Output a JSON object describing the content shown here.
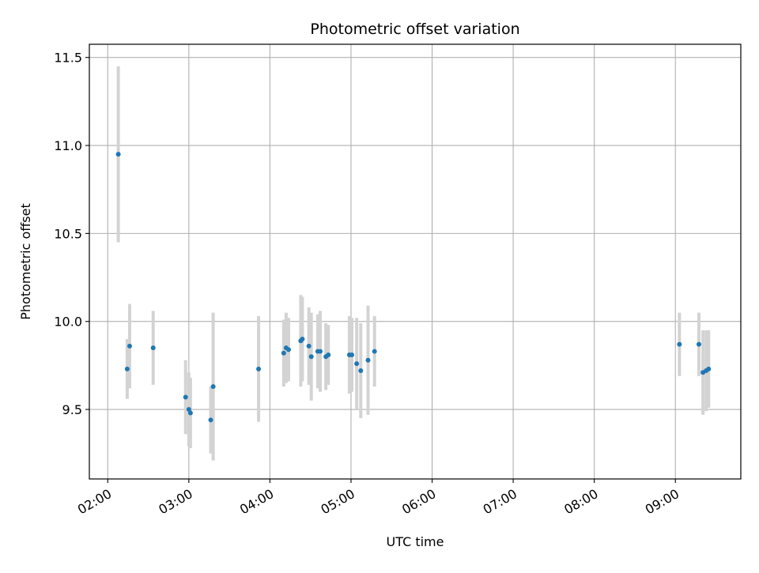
{
  "chart_data": {
    "type": "scatter",
    "title": "Photometric offset variation",
    "xlabel": "UTC time",
    "ylabel": "Photometric offset",
    "x_unit": "hours UTC",
    "xlim": [
      1.773,
      9.807
    ],
    "ylim": [
      9.105,
      11.575
    ],
    "grid": true,
    "xticks": [
      {
        "value": 2,
        "label": "02:00"
      },
      {
        "value": 3,
        "label": "03:00"
      },
      {
        "value": 4,
        "label": "04:00"
      },
      {
        "value": 5,
        "label": "05:00"
      },
      {
        "value": 6,
        "label": "06:00"
      },
      {
        "value": 7,
        "label": "07:00"
      },
      {
        "value": 8,
        "label": "08:00"
      },
      {
        "value": 9,
        "label": "09:00"
      }
    ],
    "yticks": [
      {
        "value": 9.5,
        "label": "9.5"
      },
      {
        "value": 10.0,
        "label": "10.0"
      },
      {
        "value": 10.5,
        "label": "10.5"
      },
      {
        "value": 11.0,
        "label": "11.0"
      },
      {
        "value": 11.5,
        "label": "11.5"
      }
    ],
    "point_color": "#1f77b4",
    "errorbar_color": "#d3d3d3",
    "points": [
      {
        "x": 2.13,
        "y": 10.95,
        "yerr": 0.5
      },
      {
        "x": 2.24,
        "y": 9.73,
        "yerr": 0.17
      },
      {
        "x": 2.27,
        "y": 9.86,
        "yerr": 0.24
      },
      {
        "x": 2.56,
        "y": 9.85,
        "yerr": 0.21
      },
      {
        "x": 2.96,
        "y": 9.57,
        "yerr": 0.21
      },
      {
        "x": 3.0,
        "y": 9.5,
        "yerr": 0.21
      },
      {
        "x": 3.02,
        "y": 9.48,
        "yerr": 0.2
      },
      {
        "x": 3.27,
        "y": 9.44,
        "yerr": 0.19
      },
      {
        "x": 3.3,
        "y": 9.63,
        "yerr": 0.42
      },
      {
        "x": 3.86,
        "y": 9.73,
        "yerr": 0.3
      },
      {
        "x": 4.17,
        "y": 9.82,
        "yerr": 0.19
      },
      {
        "x": 4.2,
        "y": 9.85,
        "yerr": 0.2
      },
      {
        "x": 4.23,
        "y": 9.84,
        "yerr": 0.18
      },
      {
        "x": 4.38,
        "y": 9.89,
        "yerr": 0.26
      },
      {
        "x": 4.4,
        "y": 9.9,
        "yerr": 0.24
      },
      {
        "x": 4.48,
        "y": 9.86,
        "yerr": 0.22
      },
      {
        "x": 4.51,
        "y": 9.8,
        "yerr": 0.25
      },
      {
        "x": 4.59,
        "y": 9.83,
        "yerr": 0.21
      },
      {
        "x": 4.62,
        "y": 9.83,
        "yerr": 0.23
      },
      {
        "x": 4.69,
        "y": 9.8,
        "yerr": 0.19
      },
      {
        "x": 4.72,
        "y": 9.81,
        "yerr": 0.17
      },
      {
        "x": 4.98,
        "y": 9.81,
        "yerr": 0.22
      },
      {
        "x": 5.01,
        "y": 9.81,
        "yerr": 0.21
      },
      {
        "x": 5.07,
        "y": 9.76,
        "yerr": 0.26
      },
      {
        "x": 5.12,
        "y": 9.72,
        "yerr": 0.27
      },
      {
        "x": 5.21,
        "y": 9.78,
        "yerr": 0.31
      },
      {
        "x": 5.29,
        "y": 9.83,
        "yerr": 0.2
      },
      {
        "x": 9.05,
        "y": 9.87,
        "yerr": 0.18
      },
      {
        "x": 9.29,
        "y": 9.87,
        "yerr": 0.18
      },
      {
        "x": 9.34,
        "y": 9.71,
        "yerr": 0.24
      },
      {
        "x": 9.38,
        "y": 9.72,
        "yerr": 0.23
      },
      {
        "x": 9.41,
        "y": 9.73,
        "yerr": 0.22
      }
    ]
  }
}
